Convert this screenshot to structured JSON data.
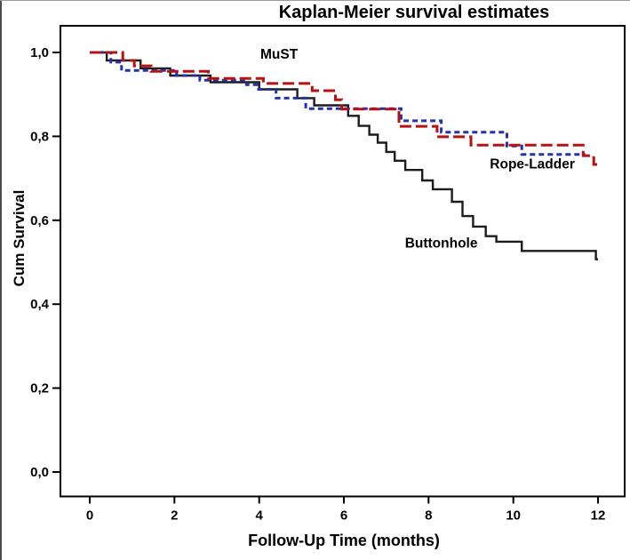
{
  "chart_data": {
    "type": "line",
    "subtype": "kaplan-meier-step",
    "title": "Kaplan-Meier survival estimates",
    "xlabel": "Follow-Up Time (months)",
    "ylabel": "Cum Survival",
    "grid": false,
    "legend": "inline curve labels",
    "x_axis": {
      "range": [
        -0.7,
        12.6
      ],
      "ticks": [
        {
          "value": 0,
          "label": "0"
        },
        {
          "value": 2,
          "label": "2"
        },
        {
          "value": 4,
          "label": "4"
        },
        {
          "value": 6,
          "label": "6"
        },
        {
          "value": 8,
          "label": "8"
        },
        {
          "value": 10,
          "label": "10"
        },
        {
          "value": 12,
          "label": "12"
        }
      ]
    },
    "y_axis": {
      "range": [
        -0.06,
        1.06
      ],
      "ticks": [
        {
          "value": 1.0,
          "label": "1,0"
        },
        {
          "value": 0.8,
          "label": "0,8"
        },
        {
          "value": 0.6,
          "label": "0,6"
        },
        {
          "value": 0.4,
          "label": "0,4"
        },
        {
          "value": 0.2,
          "label": "0,2"
        },
        {
          "value": 0.0,
          "label": "0,0"
        }
      ]
    },
    "series": [
      {
        "name": "Buttonhole",
        "color": "#1c1c1c",
        "dash": "none",
        "width": 2.4,
        "end_month": 12.0,
        "points": [
          [
            0,
            1.0
          ],
          [
            0.4,
            0.981
          ],
          [
            1.2,
            0.962
          ],
          [
            1.9,
            0.945
          ],
          [
            2.85,
            0.929
          ],
          [
            4.0,
            0.912
          ],
          [
            4.9,
            0.891
          ],
          [
            5.3,
            0.874
          ],
          [
            6.1,
            0.849
          ],
          [
            6.35,
            0.825
          ],
          [
            6.6,
            0.804
          ],
          [
            6.8,
            0.785
          ],
          [
            7.0,
            0.763
          ],
          [
            7.2,
            0.742
          ],
          [
            7.45,
            0.72
          ],
          [
            7.85,
            0.695
          ],
          [
            8.1,
            0.674
          ],
          [
            8.55,
            0.644
          ],
          [
            8.8,
            0.61
          ],
          [
            9.05,
            0.585
          ],
          [
            9.35,
            0.562
          ],
          [
            9.6,
            0.549
          ],
          [
            10.2,
            0.527
          ],
          [
            11.95,
            0.507
          ]
        ]
      },
      {
        "name": "MuST",
        "color": "#2233ab",
        "dash": "6 4",
        "width": 3,
        "end_month": 11.7,
        "points": [
          [
            0,
            1.0
          ],
          [
            0.5,
            0.977
          ],
          [
            0.75,
            0.957
          ],
          [
            2.05,
            0.945
          ],
          [
            2.6,
            0.934
          ],
          [
            3.7,
            0.923
          ],
          [
            3.95,
            0.912
          ],
          [
            4.4,
            0.891
          ],
          [
            5.1,
            0.866
          ],
          [
            7.35,
            0.837
          ],
          [
            8.3,
            0.81
          ],
          [
            9.85,
            0.777
          ],
          [
            10.2,
            0.757
          ]
        ]
      },
      {
        "name": "Rope-Ladder",
        "color": "#b51212",
        "dash": "13 5",
        "width": 3,
        "end_month": 12.0,
        "points": [
          [
            0,
            1.0
          ],
          [
            0.78,
            0.981
          ],
          [
            1.05,
            0.968
          ],
          [
            1.45,
            0.955
          ],
          [
            2.8,
            0.938
          ],
          [
            4.1,
            0.926
          ],
          [
            5.25,
            0.909
          ],
          [
            5.8,
            0.887
          ],
          [
            5.95,
            0.865
          ],
          [
            7.3,
            0.824
          ],
          [
            8.2,
            0.799
          ],
          [
            9.0,
            0.779
          ],
          [
            11.65,
            0.754
          ],
          [
            11.9,
            0.733
          ]
        ]
      }
    ],
    "annotations": [
      {
        "text": "MuST",
        "x": 4.47,
        "y": 0.985
      },
      {
        "text": "Rope-Ladder",
        "x": 10.45,
        "y": 0.723
      },
      {
        "text": "Buttonhole",
        "x": 8.3,
        "y": 0.535
      }
    ]
  }
}
